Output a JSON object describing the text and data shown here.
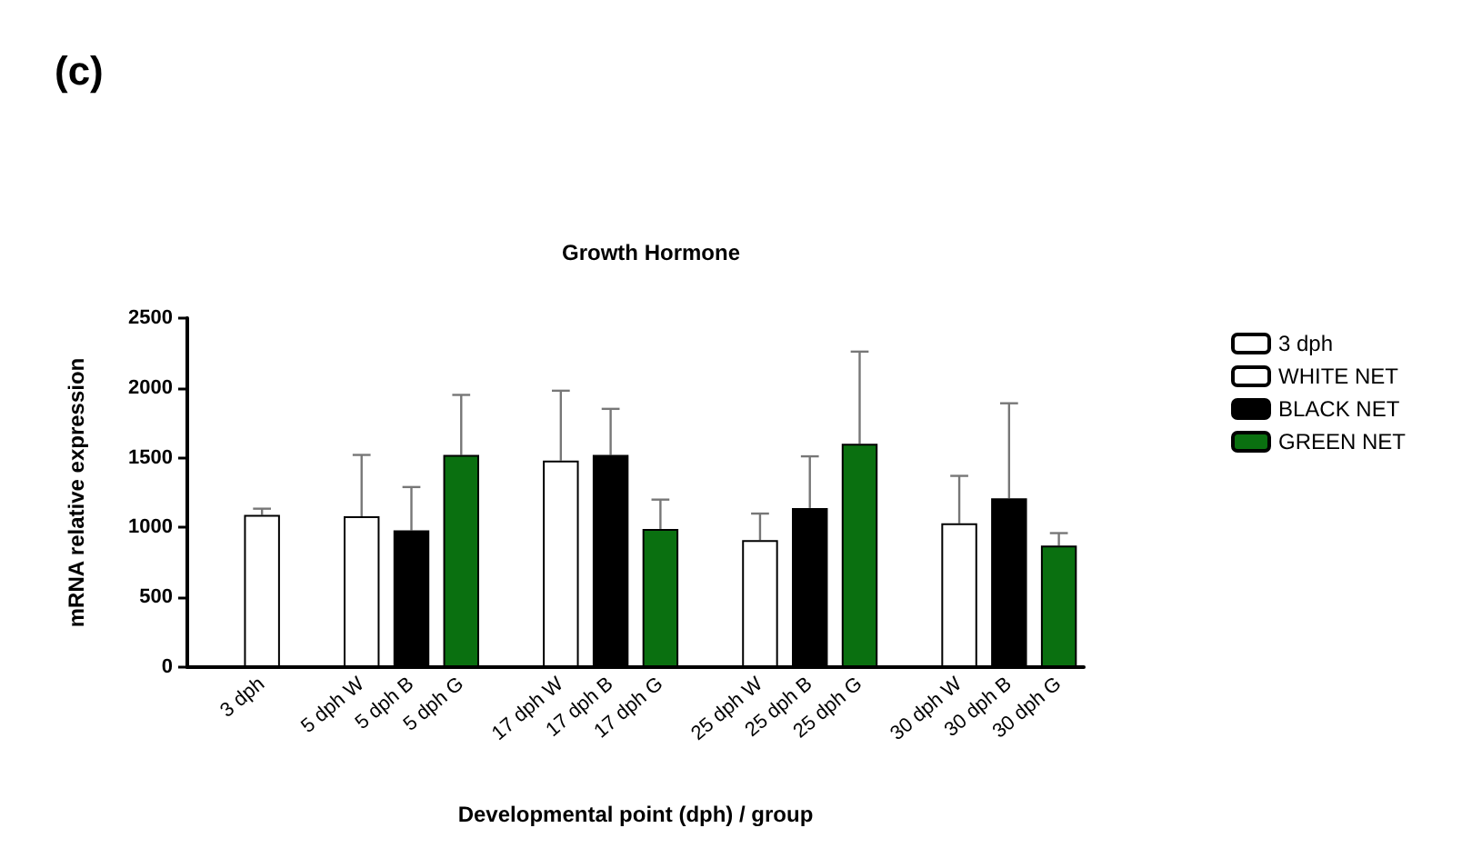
{
  "chart_data": {
    "type": "bar",
    "title": "Growth Hormone",
    "ylabel": "mRNA relative expression",
    "xlabel": "Developmental point (dph) / group",
    "annotations": [
      "(c)"
    ],
    "categories": [
      null,
      "3 dph",
      null,
      "5 dph W",
      "5 dph B",
      "5 dph G",
      null,
      "17 dph W",
      "17 dph B",
      "17 dph G",
      null,
      "25 dph W",
      "25 dph B",
      "25 dph G",
      null,
      "30 dph W",
      "30 dph B",
      "30 dph G"
    ],
    "series": [
      {
        "name": "3 dph",
        "color": "#ffffff",
        "values": [
          null,
          1090,
          null,
          null,
          null,
          null,
          null,
          null,
          null,
          null,
          null,
          null,
          null,
          null,
          null,
          null,
          null,
          null
        ],
        "errors": [
          null,
          [
            1090,
            1135
          ],
          null,
          null,
          null,
          null,
          null,
          null,
          null,
          null,
          null,
          null,
          null,
          null,
          null,
          null,
          null,
          null
        ]
      },
      {
        "name": "WHITE NET",
        "color": "#ffffff",
        "values": [
          null,
          null,
          null,
          1080,
          null,
          null,
          null,
          1480,
          null,
          null,
          null,
          910,
          null,
          null,
          null,
          1030,
          null,
          null
        ],
        "errors": [
          null,
          null,
          null,
          [
            1080,
            1520
          ],
          null,
          null,
          null,
          [
            1480,
            1980
          ],
          null,
          null,
          null,
          [
            910,
            1100
          ],
          null,
          null,
          null,
          [
            1030,
            1370
          ],
          null,
          null
        ]
      },
      {
        "name": "BLACK NET",
        "color": "#000000",
        "values": [
          null,
          null,
          null,
          null,
          980,
          null,
          null,
          null,
          1520,
          null,
          null,
          null,
          1140,
          null,
          null,
          null,
          1210,
          null
        ],
        "errors": [
          null,
          null,
          null,
          null,
          [
            980,
            1290
          ],
          null,
          null,
          null,
          [
            1520,
            1850
          ],
          null,
          null,
          null,
          [
            1140,
            1510
          ],
          null,
          null,
          null,
          [
            1210,
            1890
          ],
          null
        ]
      },
      {
        "name": "GREEN NET",
        "color": "#0a7010",
        "values": [
          null,
          null,
          null,
          null,
          null,
          1520,
          null,
          null,
          null,
          990,
          null,
          null,
          null,
          1600,
          null,
          null,
          null,
          870
        ],
        "errors": [
          null,
          null,
          null,
          null,
          null,
          [
            1520,
            1950
          ],
          null,
          null,
          null,
          [
            990,
            1200
          ],
          null,
          null,
          null,
          [
            1600,
            2260
          ],
          null,
          null,
          null,
          [
            870,
            960
          ]
        ]
      }
    ],
    "ylim": [
      0,
      2500
    ],
    "yticks": [
      0,
      500,
      1000,
      1500,
      2000,
      2500
    ],
    "grid": false,
    "legend": "top right"
  }
}
